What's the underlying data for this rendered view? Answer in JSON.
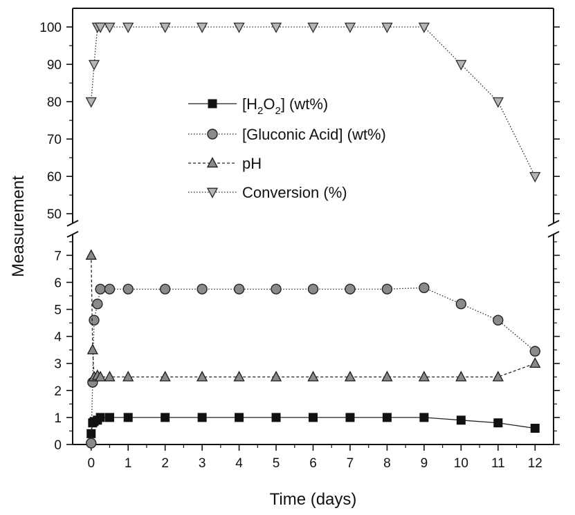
{
  "chart_data": {
    "type": "line",
    "title": "",
    "xlabel": "Time (days)",
    "ylabel": "Measurement",
    "x_ticks": [
      "0",
      "1",
      "2",
      "3",
      "4",
      "5",
      "6",
      "7",
      "8",
      "9",
      "10",
      "11",
      "12"
    ],
    "y_ticks_lower": [
      "0",
      "1",
      "2",
      "3",
      "4",
      "5",
      "6",
      "7"
    ],
    "y_ticks_upper": [
      "50",
      "60",
      "70",
      "80",
      "90",
      "100"
    ],
    "xlim": [
      -0.5,
      12.5
    ],
    "ylim_lower": [
      0,
      7.7
    ],
    "ylim_upper": [
      48,
      105
    ],
    "y_axis_break": true,
    "grid": false,
    "legend_position": "upper-center",
    "series": [
      {
        "name": "[H2O2] (wt%)",
        "legend_main": "[H",
        "legend_sub1": "2",
        "legend_mid": "O",
        "legend_sub2": "2",
        "legend_end": "] (wt%)",
        "marker": "square",
        "line_style": "solid",
        "x": [
          0,
          0.04,
          0.08,
          0.17,
          0.25,
          0.5,
          1,
          2,
          3,
          4,
          5,
          6,
          7,
          8,
          9,
          10,
          11,
          12
        ],
        "y": [
          0.4,
          0.8,
          0.85,
          0.9,
          1.0,
          1.0,
          1.0,
          1.0,
          1.0,
          1.0,
          1.0,
          1.0,
          1.0,
          1.0,
          1.0,
          0.9,
          0.8,
          0.6
        ]
      },
      {
        "name": "[Gluconic Acid] (wt%)",
        "legend_label": "[Gluconic Acid] (wt%)",
        "marker": "circle",
        "line_style": "dotted",
        "x": [
          0,
          0.04,
          0.08,
          0.17,
          0.25,
          0.5,
          1,
          2,
          3,
          4,
          5,
          6,
          7,
          8,
          9,
          10,
          11,
          12
        ],
        "y": [
          0.05,
          2.3,
          4.6,
          5.2,
          5.75,
          5.75,
          5.75,
          5.75,
          5.75,
          5.75,
          5.75,
          5.75,
          5.75,
          5.75,
          5.8,
          5.2,
          4.6,
          3.45
        ]
      },
      {
        "name": "pH",
        "legend_label": "pH",
        "marker": "triangle-up",
        "line_style": "dashed",
        "x": [
          0,
          0.04,
          0.08,
          0.17,
          0.25,
          0.5,
          1,
          2,
          3,
          4,
          5,
          6,
          7,
          8,
          9,
          10,
          11,
          12
        ],
        "y": [
          7.0,
          3.5,
          2.5,
          2.55,
          2.5,
          2.5,
          2.5,
          2.5,
          2.5,
          2.5,
          2.5,
          2.5,
          2.5,
          2.5,
          2.5,
          2.5,
          2.5,
          3.0
        ]
      },
      {
        "name": "Conversion (%)",
        "legend_label": "Conversion (%)",
        "marker": "triangle-down",
        "line_style": "dotted",
        "x": [
          0,
          0.08,
          0.17,
          0.25,
          0.5,
          1,
          2,
          3,
          4,
          5,
          6,
          7,
          8,
          9,
          10,
          11,
          12
        ],
        "y": [
          80,
          90,
          100,
          100,
          100,
          100,
          100,
          100,
          100,
          100,
          100,
          100,
          100,
          100,
          90,
          80,
          60
        ]
      }
    ]
  }
}
